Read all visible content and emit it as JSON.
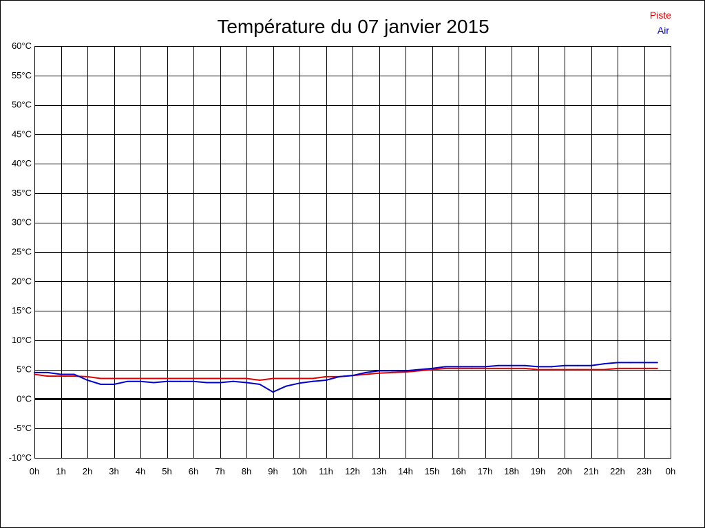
{
  "chart_data": {
    "type": "line",
    "title": "Température du 07 janvier 2015",
    "xlabel": "",
    "ylabel": "",
    "x_unit": "hour",
    "xlim": [
      0,
      24
    ],
    "ylim": [
      -10,
      60
    ],
    "grid": true,
    "legend_position": "top-right",
    "x_ticks": [
      "0h",
      "1h",
      "2h",
      "3h",
      "4h",
      "5h",
      "6h",
      "7h",
      "8h",
      "9h",
      "10h",
      "11h",
      "12h",
      "13h",
      "14h",
      "15h",
      "16h",
      "17h",
      "18h",
      "19h",
      "20h",
      "21h",
      "22h",
      "23h",
      "0h"
    ],
    "y_ticks": [
      "60°C",
      "55°C",
      "50°C",
      "45°C",
      "40°C",
      "35°C",
      "30°C",
      "25°C",
      "20°C",
      "15°C",
      "10°C",
      "5°C",
      "0°C",
      "-5°C",
      "-10°C"
    ],
    "y_tick_values": [
      60,
      55,
      50,
      45,
      40,
      35,
      30,
      25,
      20,
      15,
      10,
      5,
      0,
      -5,
      -10
    ],
    "zero_line": 0,
    "series": [
      {
        "name": "Piste",
        "color": "#dd0000",
        "x": [
          0,
          0.5,
          1,
          1.5,
          2,
          2.5,
          3,
          3.5,
          4,
          4.5,
          5,
          5.5,
          6,
          6.5,
          7,
          7.5,
          8,
          8.5,
          9,
          9.5,
          10,
          10.5,
          11,
          11.5,
          12,
          12.5,
          13,
          13.5,
          14,
          14.5,
          15,
          15.5,
          16,
          16.5,
          17,
          17.5,
          18,
          18.5,
          19,
          19.5,
          20,
          20.5,
          21,
          21.5,
          22,
          22.5,
          23,
          23.5
        ],
        "values": [
          4.2,
          3.9,
          3.9,
          3.9,
          3.8,
          3.5,
          3.5,
          3.5,
          3.5,
          3.5,
          3.5,
          3.5,
          3.5,
          3.5,
          3.5,
          3.5,
          3.5,
          3.2,
          3.5,
          3.5,
          3.5,
          3.5,
          3.8,
          3.8,
          4.0,
          4.2,
          4.4,
          4.5,
          4.6,
          4.8,
          5.0,
          5.2,
          5.2,
          5.2,
          5.2,
          5.2,
          5.2,
          5.2,
          5.0,
          5.0,
          5.0,
          5.0,
          5.0,
          5.0,
          5.2,
          5.2,
          5.2,
          5.2
        ]
      },
      {
        "name": "Air",
        "color": "#0000cc",
        "x": [
          0,
          0.5,
          1,
          1.5,
          2,
          2.5,
          3,
          3.5,
          4,
          4.5,
          5,
          5.5,
          6,
          6.5,
          7,
          7.5,
          8,
          8.5,
          9,
          9.5,
          10,
          10.5,
          11,
          11.5,
          12,
          12.5,
          13,
          13.5,
          14,
          14.5,
          15,
          15.5,
          16,
          16.5,
          17,
          17.5,
          18,
          18.5,
          19,
          19.5,
          20,
          20.5,
          21,
          21.5,
          22,
          22.5,
          23,
          23.5
        ],
        "values": [
          4.5,
          4.5,
          4.2,
          4.2,
          3.2,
          2.5,
          2.5,
          3.0,
          3.0,
          2.8,
          3.0,
          3.0,
          3.0,
          2.8,
          2.8,
          3.0,
          2.8,
          2.5,
          1.2,
          2.2,
          2.7,
          3.0,
          3.2,
          3.8,
          4.0,
          4.5,
          4.8,
          4.8,
          4.8,
          5.0,
          5.2,
          5.5,
          5.5,
          5.5,
          5.5,
          5.7,
          5.7,
          5.7,
          5.5,
          5.5,
          5.7,
          5.7,
          5.7,
          6.0,
          6.2,
          6.2,
          6.2,
          6.2
        ]
      }
    ]
  }
}
